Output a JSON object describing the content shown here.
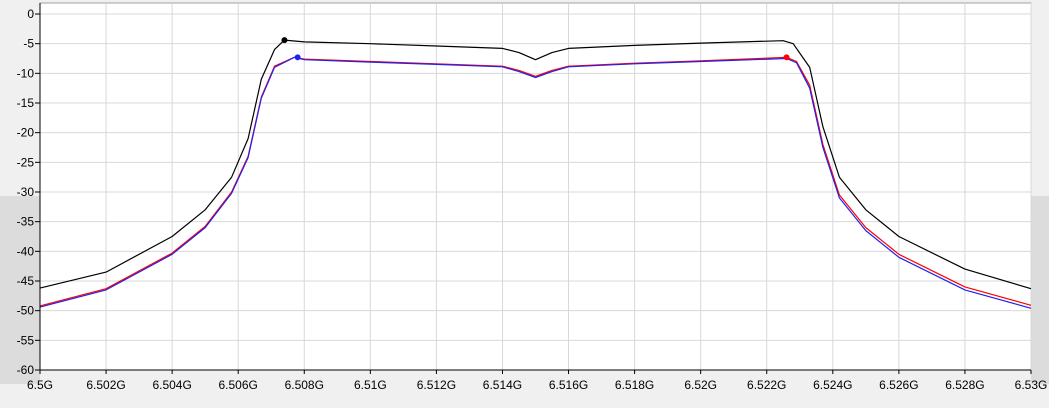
{
  "chart_data": {
    "type": "line",
    "title": "",
    "xlabel": "",
    "ylabel": "",
    "xlim": [
      6.5,
      6.53
    ],
    "ylim": [
      -60,
      0
    ],
    "grid": true,
    "x_ticks": [
      6.5,
      6.502,
      6.504,
      6.506,
      6.508,
      6.51,
      6.512,
      6.514,
      6.516,
      6.518,
      6.52,
      6.522,
      6.524,
      6.526,
      6.528,
      6.53
    ],
    "x_tick_labels": [
      "6.5G",
      "6.502G",
      "6.504G",
      "6.506G",
      "6.508G",
      "6.51G",
      "6.512G",
      "6.514G",
      "6.516G",
      "6.518G",
      "6.52G",
      "6.522G",
      "6.524G",
      "6.526G",
      "6.528G",
      "6.53G"
    ],
    "y_ticks": [
      0,
      -5,
      -10,
      -15,
      -20,
      -25,
      -30,
      -35,
      -40,
      -45,
      -50,
      -55,
      -60
    ],
    "y_tick_labels": [
      "0",
      "-5",
      "-10",
      "-15",
      "-20",
      "-25",
      "-30",
      "-35",
      "-40",
      "-45",
      "-50",
      "-55",
      "-60"
    ],
    "series": [
      {
        "color": "#000000",
        "x": [
          6.5,
          6.502,
          6.504,
          6.505,
          6.5058,
          6.5063,
          6.5067,
          6.5071,
          6.5074,
          6.508,
          6.51,
          6.512,
          6.514,
          6.5145,
          6.515,
          6.5155,
          6.516,
          6.518,
          6.52,
          6.5225,
          6.5228,
          6.5233,
          6.5237,
          6.5242,
          6.525,
          6.526,
          6.528,
          6.53
        ],
        "y": [
          -46.2,
          -43.5,
          -37.5,
          -33.0,
          -27.5,
          -21.0,
          -11.0,
          -6.0,
          -4.4,
          -4.7,
          -5.0,
          -5.4,
          -5.8,
          -6.5,
          -7.7,
          -6.5,
          -5.8,
          -5.3,
          -4.9,
          -4.5,
          -5.0,
          -9.0,
          -19.0,
          -27.5,
          -33.0,
          -37.5,
          -43.0,
          -46.3
        ]
      },
      {
        "color": "#ff0000",
        "x": [
          6.5,
          6.502,
          6.504,
          6.505,
          6.5058,
          6.5063,
          6.5067,
          6.5071,
          6.5077,
          6.508,
          6.51,
          6.512,
          6.514,
          6.5145,
          6.515,
          6.5155,
          6.516,
          6.518,
          6.52,
          6.5226,
          6.5229,
          6.5233,
          6.5237,
          6.5242,
          6.525,
          6.526,
          6.528,
          6.53
        ],
        "y": [
          -49.2,
          -46.3,
          -40.3,
          -35.8,
          -30.0,
          -24.0,
          -14.0,
          -8.8,
          -7.3,
          -7.6,
          -8.0,
          -8.4,
          -8.8,
          -9.5,
          -10.5,
          -9.5,
          -8.8,
          -8.3,
          -7.9,
          -7.3,
          -8.0,
          -12.0,
          -22.0,
          -30.5,
          -36.0,
          -40.5,
          -46.0,
          -49.1
        ]
      },
      {
        "color": "#2222ee",
        "x": [
          6.5,
          6.502,
          6.504,
          6.505,
          6.5058,
          6.5063,
          6.5067,
          6.5071,
          6.5077,
          6.508,
          6.51,
          6.512,
          6.514,
          6.5145,
          6.515,
          6.5155,
          6.516,
          6.518,
          6.52,
          6.5226,
          6.5229,
          6.5233,
          6.5237,
          6.5242,
          6.525,
          6.526,
          6.528,
          6.53
        ],
        "y": [
          -49.4,
          -46.5,
          -40.5,
          -36.0,
          -30.2,
          -24.2,
          -14.2,
          -9.0,
          -7.3,
          -7.7,
          -8.1,
          -8.5,
          -8.9,
          -9.7,
          -10.7,
          -9.7,
          -8.9,
          -8.4,
          -8.0,
          -7.5,
          -8.2,
          -12.5,
          -22.5,
          -31.0,
          -36.5,
          -41.0,
          -46.5,
          -49.6
        ]
      }
    ],
    "markers": [
      {
        "x": 6.5074,
        "y": -4.4,
        "color": "#000000"
      },
      {
        "x": 6.5078,
        "y": -7.3,
        "color": "#2222ee"
      },
      {
        "x": 6.5226,
        "y": -7.3,
        "color": "#ff0000"
      }
    ]
  }
}
